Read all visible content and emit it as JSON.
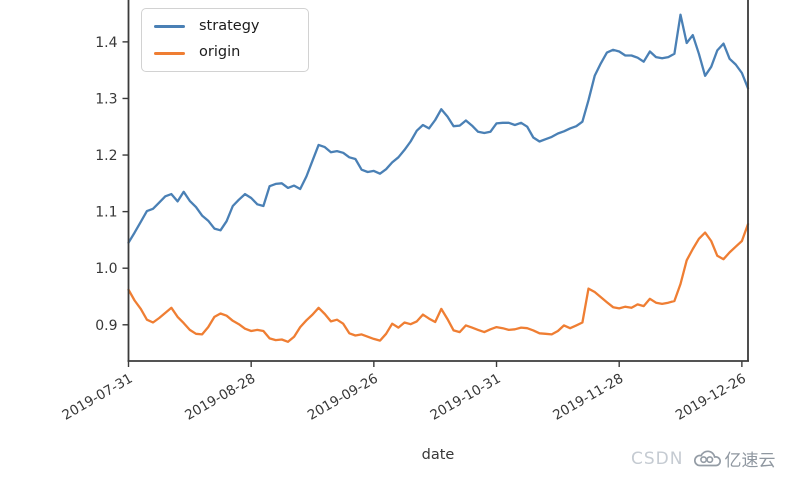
{
  "figure": {
    "watermark": {
      "csdn_text": "CSDN",
      "brand_text": "亿速云"
    }
  },
  "chart_data": {
    "type": "line",
    "title": "",
    "xlabel": "date",
    "ylabel": "",
    "grid": false,
    "legend_position": "upper left",
    "x_unit": "trading days (index)",
    "x_count": 102,
    "x_tick_indices": [
      0,
      20,
      40,
      60,
      80,
      100
    ],
    "x_tick_labels": [
      "2019-07-31",
      "2019-08-28",
      "2019-09-26",
      "2019-10-31",
      "2019-11-28",
      "2019-12-26"
    ],
    "y_ticks": [
      0.9,
      1.0,
      1.1,
      1.2,
      1.3,
      1.4
    ],
    "ylim": [
      0.836,
      1.474
    ],
    "axis_color": "#3b3b3b",
    "tick_label_color": "#383838",
    "series": [
      {
        "name": "strategy",
        "color": "#4a80b5",
        "values": [
          1.045,
          1.063,
          1.082,
          1.101,
          1.105,
          1.116,
          1.127,
          1.131,
          1.118,
          1.135,
          1.119,
          1.108,
          1.093,
          1.084,
          1.07,
          1.067,
          1.083,
          1.11,
          1.121,
          1.131,
          1.124,
          1.113,
          1.11,
          1.145,
          1.149,
          1.15,
          1.142,
          1.146,
          1.14,
          1.162,
          1.19,
          1.218,
          1.214,
          1.205,
          1.207,
          1.204,
          1.196,
          1.193,
          1.174,
          1.17,
          1.172,
          1.167,
          1.175,
          1.187,
          1.196,
          1.209,
          1.224,
          1.243,
          1.253,
          1.247,
          1.262,
          1.281,
          1.268,
          1.251,
          1.252,
          1.261,
          1.252,
          1.241,
          1.239,
          1.241,
          1.256,
          1.257,
          1.257,
          1.253,
          1.257,
          1.25,
          1.231,
          1.224,
          1.228,
          1.232,
          1.238,
          1.242,
          1.247,
          1.251,
          1.259,
          1.297,
          1.34,
          1.362,
          1.381,
          1.386,
          1.383,
          1.376,
          1.376,
          1.372,
          1.365,
          1.383,
          1.373,
          1.371,
          1.373,
          1.379,
          1.448,
          1.398,
          1.412,
          1.379,
          1.34,
          1.356,
          1.385,
          1.397,
          1.37,
          1.36,
          1.345,
          1.318
        ]
      },
      {
        "name": "origin",
        "color": "#ef7e33",
        "values": [
          0.962,
          0.943,
          0.928,
          0.909,
          0.904,
          0.912,
          0.921,
          0.93,
          0.914,
          0.903,
          0.891,
          0.884,
          0.883,
          0.896,
          0.914,
          0.92,
          0.916,
          0.907,
          0.901,
          0.893,
          0.889,
          0.891,
          0.889,
          0.876,
          0.873,
          0.874,
          0.87,
          0.879,
          0.896,
          0.908,
          0.918,
          0.93,
          0.919,
          0.906,
          0.909,
          0.902,
          0.885,
          0.881,
          0.883,
          0.879,
          0.875,
          0.872,
          0.884,
          0.902,
          0.895,
          0.904,
          0.901,
          0.906,
          0.918,
          0.911,
          0.905,
          0.928,
          0.91,
          0.89,
          0.887,
          0.899,
          0.895,
          0.891,
          0.887,
          0.892,
          0.896,
          0.894,
          0.891,
          0.892,
          0.895,
          0.894,
          0.89,
          0.885,
          0.884,
          0.883,
          0.889,
          0.899,
          0.894,
          0.899,
          0.904,
          0.964,
          0.958,
          0.949,
          0.94,
          0.931,
          0.929,
          0.932,
          0.93,
          0.936,
          0.933,
          0.946,
          0.939,
          0.937,
          0.939,
          0.942,
          0.972,
          1.014,
          1.034,
          1.052,
          1.063,
          1.048,
          1.022,
          1.016,
          1.028,
          1.038,
          1.048,
          1.078
        ]
      }
    ]
  }
}
